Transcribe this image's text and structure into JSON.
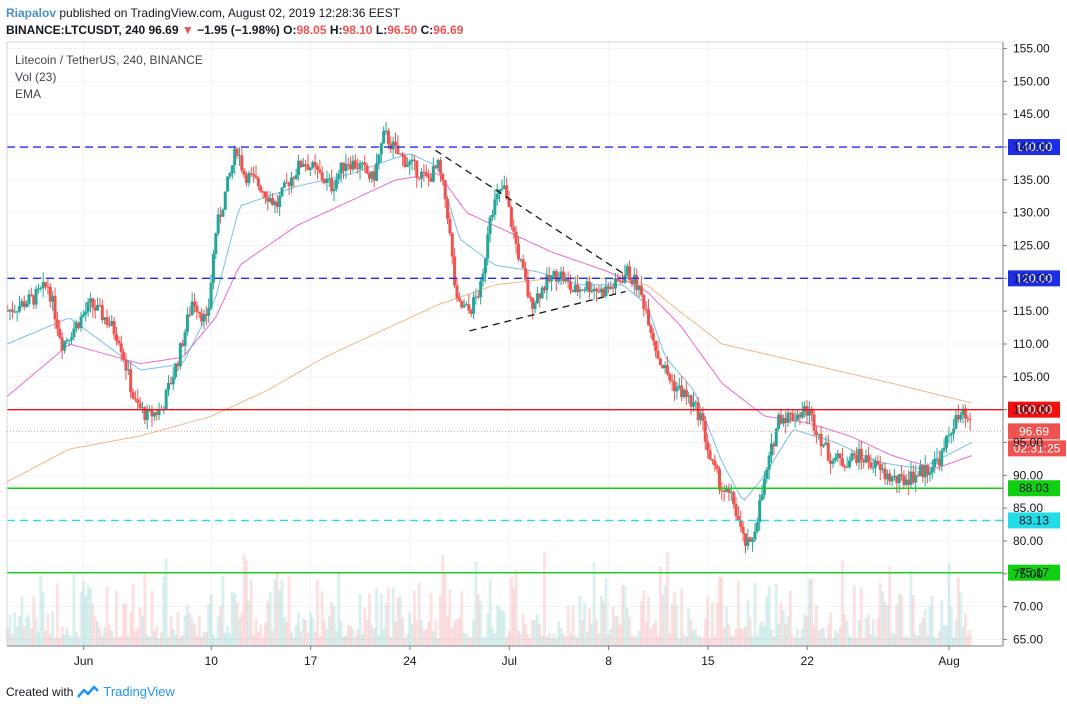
{
  "header": {
    "author": "Riapalov",
    "published_text": "published on TradingView.com, August 02, 2019 12:28:36 EEST",
    "symbol": "BINANCE:LTCUSDT, 240",
    "last": "96.69",
    "change_arrow": "▼",
    "change": "−1.95 (−1.98%)",
    "o_label": "O:",
    "o": "98.05",
    "h_label": "H:",
    "h": "98.10",
    "l_label": "L:",
    "l": "96.50",
    "c_label": "C:",
    "c": "96.69"
  },
  "indicators": {
    "title": "Litecoin / TetherUS, 240, BINANCE",
    "vol": "Vol (23)",
    "ema": "EMA"
  },
  "footer": {
    "created_with": "Created with",
    "brand": "TradingView"
  },
  "colors": {
    "up": "#26a69a",
    "down": "#ef5350",
    "ema_fast": "#5fb6e8",
    "ema_mid": "#e84fcf",
    "ema_slow": "#f5a96b",
    "resistance_blue": "#1c2ee8",
    "level_red": "#f01010",
    "support_green": "#11d011",
    "support_cyan": "#22dde8"
  },
  "chart_data": {
    "type": "candlestick",
    "title": "Litecoin / TetherUS, 240, BINANCE",
    "ylim": [
      64,
      156
    ],
    "y_ticks": [
      "155.00",
      "150.00",
      "145.00",
      "140.00",
      "135.00",
      "130.00",
      "125.00",
      "120.00",
      "115.00",
      "110.00",
      "105.00",
      "100.00",
      "95.00",
      "90.00",
      "85.00",
      "80.00",
      "75.00",
      "70.00",
      "65.00"
    ],
    "x_ticks": [
      {
        "label": "Jun",
        "day": 1
      },
      {
        "label": "10",
        "day": 10
      },
      {
        "label": "17",
        "day": 17
      },
      {
        "label": "24",
        "day": 24
      },
      {
        "label": "Jul",
        "day": 31
      },
      {
        "label": "8",
        "day": 38
      },
      {
        "label": "15",
        "day": 45
      },
      {
        "label": "22",
        "day": 52
      },
      {
        "label": "Aug",
        "day": 62
      }
    ],
    "x_range_days": [
      -4.4,
      65.8
    ],
    "horizontal_levels": [
      {
        "value": 140.0,
        "label": "140.00",
        "style": "dashed",
        "color": "#1c2ee8"
      },
      {
        "value": 120.0,
        "label": "120.00",
        "style": "dashed",
        "color": "#1c2ee8"
      },
      {
        "value": 100.0,
        "label": "100.00",
        "style": "solid",
        "color": "#f01010"
      },
      {
        "value": 88.03,
        "label": "88.03",
        "style": "solid",
        "color": "#11d011"
      },
      {
        "value": 83.13,
        "label": "83.13",
        "style": "dashed",
        "color": "#22dde8"
      },
      {
        "value": 75.17,
        "label": "75.17",
        "style": "solid",
        "color": "#11d011"
      }
    ],
    "last_price": {
      "value": 96.69,
      "label": "96.69",
      "countdown": "02:31:25"
    },
    "triangle": {
      "upper": [
        [
          25.8,
          139.5
        ],
        [
          39.2,
          120.5
        ]
      ],
      "lower": [
        [
          28.2,
          112.0
        ],
        [
          39.2,
          118.0
        ]
      ]
    },
    "price_path": [
      [
        -4.4,
        115
      ],
      [
        -2.5,
        117
      ],
      [
        -1.5,
        119
      ],
      [
        -0.5,
        110
      ],
      [
        0.5,
        113
      ],
      [
        1.5,
        116
      ],
      [
        2.5,
        114
      ],
      [
        3.5,
        111
      ],
      [
        4.6,
        101
      ],
      [
        5.5,
        99
      ],
      [
        6.5,
        100
      ],
      [
        7.7,
        108
      ],
      [
        8.7,
        117
      ],
      [
        9.7,
        113
      ],
      [
        10.3,
        127
      ],
      [
        11,
        133
      ],
      [
        11.8,
        140
      ],
      [
        12.3,
        136
      ],
      [
        13.5,
        134
      ],
      [
        14.6,
        131
      ],
      [
        15.5,
        135
      ],
      [
        16.5,
        138
      ],
      [
        17.5,
        136
      ],
      [
        18.5,
        134
      ],
      [
        19.5,
        138
      ],
      [
        20.5,
        137
      ],
      [
        21.4,
        135
      ],
      [
        22.2,
        142
      ],
      [
        23.1,
        139
      ],
      [
        24.2,
        137
      ],
      [
        25.2,
        135
      ],
      [
        26,
        137
      ],
      [
        26.6,
        131
      ],
      [
        27.3,
        116
      ],
      [
        28.2,
        115
      ],
      [
        29.1,
        119
      ],
      [
        29.6,
        130
      ],
      [
        30.6,
        134
      ],
      [
        31.5,
        125
      ],
      [
        32.5,
        116
      ],
      [
        33.5,
        119
      ],
      [
        34.5,
        121
      ],
      [
        35.5,
        118
      ],
      [
        36.5,
        119
      ],
      [
        37.5,
        118
      ],
      [
        38.5,
        119
      ],
      [
        39.3,
        121
      ],
      [
        40,
        119
      ],
      [
        40.7,
        115
      ],
      [
        41.5,
        108
      ],
      [
        42.5,
        104
      ],
      [
        43.5,
        102
      ],
      [
        44.5,
        99
      ],
      [
        45.2,
        92
      ],
      [
        46,
        88
      ],
      [
        46.8,
        86
      ],
      [
        47.5,
        80
      ],
      [
        48,
        79
      ],
      [
        48.5,
        84
      ],
      [
        49.3,
        92
      ],
      [
        50,
        99
      ],
      [
        51,
        99
      ],
      [
        52,
        100
      ],
      [
        52.7,
        97
      ],
      [
        53.5,
        93
      ],
      [
        54.5,
        92
      ],
      [
        55.5,
        93
      ],
      [
        56.5,
        92
      ],
      [
        57.5,
        90
      ],
      [
        58.5,
        89
      ],
      [
        59.5,
        90
      ],
      [
        60.5,
        91
      ],
      [
        61.5,
        93
      ],
      [
        62.3,
        98
      ],
      [
        63,
        99
      ],
      [
        63.6,
        97
      ]
    ],
    "ema_fast_path": [
      [
        -4.4,
        110
      ],
      [
        0,
        114
      ],
      [
        5,
        106
      ],
      [
        8,
        107
      ],
      [
        10.3,
        117
      ],
      [
        12,
        131
      ],
      [
        16,
        134
      ],
      [
        20,
        136
      ],
      [
        22.5,
        138
      ],
      [
        24,
        139
      ],
      [
        26,
        137
      ],
      [
        27.5,
        126
      ],
      [
        30,
        122
      ],
      [
        33,
        121
      ],
      [
        36,
        119
      ],
      [
        39,
        119
      ],
      [
        40.7,
        116
      ],
      [
        42,
        108
      ],
      [
        44,
        103
      ],
      [
        46,
        92
      ],
      [
        47.5,
        86
      ],
      [
        49,
        90
      ],
      [
        51,
        97
      ],
      [
        54,
        95
      ],
      [
        57,
        92
      ],
      [
        60,
        91
      ],
      [
        63.6,
        95
      ]
    ],
    "ema_mid_path": [
      [
        -4.4,
        102
      ],
      [
        0,
        110
      ],
      [
        5,
        107
      ],
      [
        8,
        108
      ],
      [
        10.3,
        114
      ],
      [
        12,
        122
      ],
      [
        16,
        128
      ],
      [
        20,
        132
      ],
      [
        23,
        135
      ],
      [
        26,
        136
      ],
      [
        28,
        130
      ],
      [
        31,
        127
      ],
      [
        34,
        124
      ],
      [
        38,
        121
      ],
      [
        40.7,
        118
      ],
      [
        43,
        113
      ],
      [
        46,
        104
      ],
      [
        49,
        99
      ],
      [
        52,
        98
      ],
      [
        55,
        96
      ],
      [
        58,
        93
      ],
      [
        61,
        91
      ],
      [
        63.6,
        93
      ]
    ],
    "ema_slow_path": [
      [
        -4.4,
        89
      ],
      [
        0,
        94
      ],
      [
        5,
        96
      ],
      [
        10,
        99
      ],
      [
        14,
        103
      ],
      [
        18,
        108
      ],
      [
        22,
        112
      ],
      [
        26,
        116
      ],
      [
        30,
        119
      ],
      [
        34,
        120
      ],
      [
        38,
        120
      ],
      [
        40.7,
        119
      ],
      [
        43,
        115
      ],
      [
        46,
        110
      ],
      [
        50,
        108
      ],
      [
        54,
        106
      ],
      [
        58,
        104
      ],
      [
        63.6,
        101
      ]
    ]
  }
}
